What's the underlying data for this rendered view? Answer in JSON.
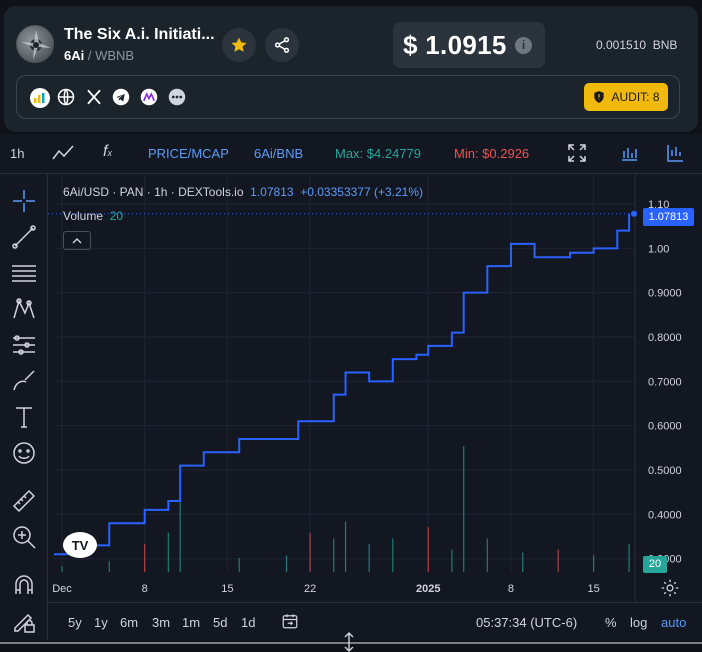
{
  "token": {
    "name": "The Six A.i. Initiati...",
    "symbol": "6Ai",
    "pair": "WBNB"
  },
  "price": {
    "usd": "$ 1.0915",
    "bnb_value": "0.001510",
    "bnb_unit": "BNB"
  },
  "audit": {
    "label": "AUDIT: 8"
  },
  "toolbar": {
    "interval": "1h",
    "price_mcap": "PRICE/MCAP",
    "pair": "6Ai/BNB",
    "max": "Max: $4.24779",
    "min": "Min: $0.2926"
  },
  "chart_legend": {
    "title": "6Ai/USD · PAN · 1h · DEXTools.io",
    "last": "1.07813",
    "change": "+0.03353377 (+3.21%)",
    "volume_label": "Volume",
    "volume_value": "20"
  },
  "price_tag": "1.07813",
  "volume_tag": "20",
  "bottombar": {
    "ranges": [
      "5y",
      "1y",
      "6m",
      "3m",
      "1m",
      "5d",
      "1d"
    ],
    "time": "05:37:34 (UTC-6)",
    "percent": "%",
    "log": "log",
    "auto": "auto"
  },
  "colors": {
    "line": "#2962ff",
    "up": "#26a69a",
    "down": "#ef5350",
    "max_text": "#26a69a",
    "min_text": "#ef5350",
    "audit_bg": "#f0b90b"
  },
  "chart_data": {
    "type": "line",
    "title": "6Ai/USD · PAN · 1h · DEXTools.io",
    "x_ticks": [
      "Dec",
      "8",
      "15",
      "22",
      "2025",
      "8",
      "15"
    ],
    "y_ticks": [
      "1.10",
      "1.00",
      "0.9000",
      "0.8000",
      "0.7000",
      "0.6000",
      "0.5000",
      "0.4000",
      "0.3000"
    ],
    "ylim": [
      0.27,
      1.1
    ],
    "x": [
      "Dec 1",
      "Dec 3",
      "Dec 5",
      "Dec 8",
      "Dec 10",
      "Dec 11",
      "Dec 13",
      "Dec 16",
      "Dec 19",
      "Dec 21",
      "Dec 24",
      "Dec 25",
      "Dec 27",
      "Dec 29",
      "Dec 31",
      "Jan 1",
      "Jan 3",
      "Jan 4",
      "Jan 6",
      "Jan 8",
      "Jan 10",
      "Jan 13",
      "Jan 15",
      "Jan 17",
      "Jan 18"
    ],
    "values": [
      0.31,
      0.33,
      0.38,
      0.41,
      0.43,
      0.51,
      0.54,
      0.57,
      0.57,
      0.61,
      0.67,
      0.72,
      0.7,
      0.75,
      0.76,
      0.78,
      0.81,
      0.9,
      0.96,
      1.01,
      0.98,
      0.99,
      1.0,
      1.04,
      1.078
    ],
    "volume": {
      "x": [
        "Dec 1",
        "Dec 5",
        "Dec 8",
        "Dec 10",
        "Dec 11",
        "Dec 16",
        "Dec 20",
        "Dec 22",
        "Dec 24",
        "Dec 25",
        "Dec 27",
        "Dec 29",
        "Jan 1",
        "Jan 3",
        "Jan 4",
        "Jan 6",
        "Jan 9",
        "Jan 12",
        "Jan 15",
        "Jan 18"
      ],
      "values": [
        4,
        8,
        20,
        28,
        52,
        10,
        12,
        28,
        24,
        36,
        20,
        24,
        32,
        16,
        90,
        24,
        14,
        16,
        12,
        20
      ]
    }
  }
}
